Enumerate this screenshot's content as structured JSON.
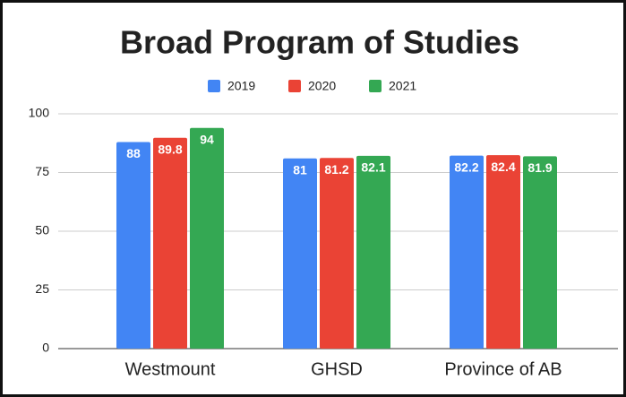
{
  "chart_data": {
    "type": "bar",
    "title": "Broad Program of Studies",
    "categories": [
      "Westmount",
      "GHSD",
      "Province of AB"
    ],
    "series": [
      {
        "name": "2019",
        "color": "#4285f4",
        "values": [
          88,
          81,
          82.2
        ]
      },
      {
        "name": "2020",
        "color": "#ea4335",
        "values": [
          89.8,
          81.2,
          82.4
        ]
      },
      {
        "name": "2021",
        "color": "#34a853",
        "values": [
          94,
          82.1,
          81.9
        ]
      }
    ],
    "ylim": [
      0,
      100
    ],
    "yticks": [
      0,
      25,
      50,
      75,
      100
    ],
    "grid": true,
    "legend": "top"
  }
}
